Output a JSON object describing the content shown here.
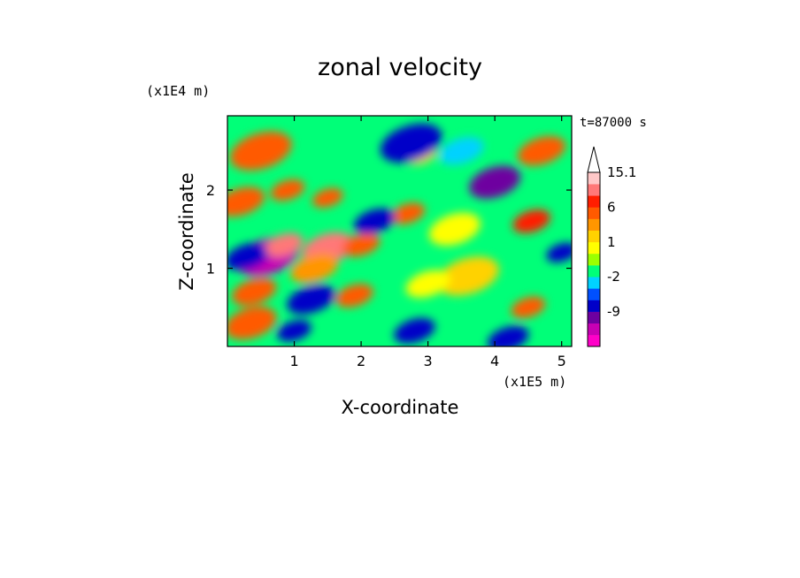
{
  "chart_data": {
    "type": "heatmap",
    "title": "zonal velocity",
    "xlabel": "X-coordinate",
    "ylabel": "Z-coordinate",
    "x_scale_label": "(x1E5 m)",
    "y_scale_label": "(x1E4 m)",
    "time_label": "t=87000 s",
    "xlim": [
      0,
      5.15
    ],
    "ylim": [
      0,
      2.95
    ],
    "x_ticks": [
      "1",
      "2",
      "3",
      "4",
      "5"
    ],
    "x_tick_values": [
      1,
      2,
      3,
      4,
      5
    ],
    "y_ticks": [
      "1",
      "2"
    ],
    "y_tick_values": [
      1,
      2
    ],
    "colorbar": {
      "levels_bottom_to_top": [
        "-15",
        "-12",
        "-9",
        "-6",
        "-3",
        "-2",
        "-1",
        "0",
        "1",
        "2",
        "3",
        "6",
        "9",
        "12",
        "15.1"
      ],
      "labels": [
        "15.1",
        "6",
        "1",
        "-2",
        "-9"
      ],
      "colors_bottom_to_top": [
        "#ff00c8",
        "#c800b4",
        "#6e00a0",
        "#0000c8",
        "#0050ff",
        "#00d2ff",
        "#00ff78",
        "#9bff00",
        "#ffff00",
        "#ffd200",
        "#ff9600",
        "#ff5a00",
        "#ff1e00",
        "#ff7878",
        "#ffc8c8"
      ],
      "extend": "max"
    },
    "features": [
      {
        "x": 0.6,
        "z": 1.15,
        "value": -13
      },
      {
        "x": 0.3,
        "z": 1.15,
        "value": -8
      },
      {
        "x": 1.5,
        "z": 1.25,
        "value": 10
      },
      {
        "x": 2.0,
        "z": 1.3,
        "value": 6
      },
      {
        "x": 1.3,
        "z": 1.0,
        "value": 3
      },
      {
        "x": 2.7,
        "z": 1.7,
        "value": 4
      },
      {
        "x": 2.2,
        "z": 1.6,
        "value": -8
      },
      {
        "x": 1.5,
        "z": 1.9,
        "value": 6
      },
      {
        "x": 0.5,
        "z": 2.5,
        "value": 6
      },
      {
        "x": 0.4,
        "z": 0.7,
        "value": 6
      },
      {
        "x": 0.35,
        "z": 0.3,
        "value": 6
      },
      {
        "x": 1.9,
        "z": 0.65,
        "value": 6
      },
      {
        "x": 1.25,
        "z": 0.6,
        "value": -8
      },
      {
        "x": 1.0,
        "z": 0.2,
        "value": -8
      },
      {
        "x": 2.8,
        "z": 0.2,
        "value": -8
      },
      {
        "x": 2.9,
        "z": 2.45,
        "value": 2
      },
      {
        "x": 2.75,
        "z": 2.6,
        "value": -8
      },
      {
        "x": 3.5,
        "z": 2.5,
        "value": -2
      },
      {
        "x": 4.0,
        "z": 2.1,
        "value": -9
      },
      {
        "x": 4.55,
        "z": 1.6,
        "value": 8
      },
      {
        "x": 4.7,
        "z": 2.5,
        "value": 6
      },
      {
        "x": 4.5,
        "z": 0.5,
        "value": 6
      },
      {
        "x": 4.2,
        "z": 0.1,
        "value": -7
      },
      {
        "x": 5.0,
        "z": 1.2,
        "value": -8
      },
      {
        "x": 3.6,
        "z": 0.9,
        "value": 2
      },
      {
        "x": 3.0,
        "z": 0.8,
        "value": 1
      },
      {
        "x": 3.4,
        "z": 1.5,
        "value": 1
      },
      {
        "x": 0.85,
        "z": 1.3,
        "value": 12
      },
      {
        "x": 0.2,
        "z": 1.85,
        "value": 6
      },
      {
        "x": 0.9,
        "z": 2.0,
        "value": 4
      }
    ]
  }
}
